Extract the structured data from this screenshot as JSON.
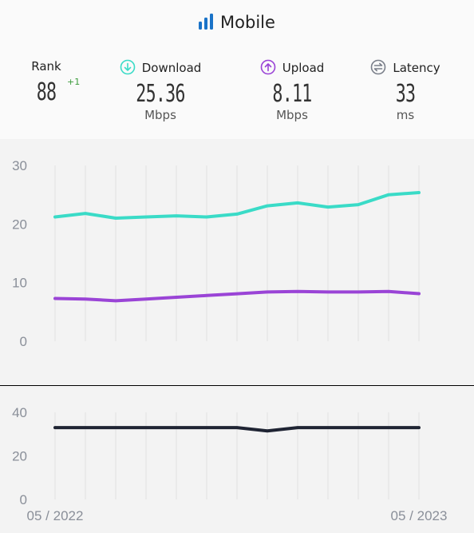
{
  "header": {
    "title": "Mobile",
    "rank": {
      "label": "Rank",
      "value": "88",
      "change": "+1"
    },
    "download": {
      "label": "Download",
      "value": "25.36",
      "unit": "Mbps",
      "color": "#3adbc7"
    },
    "upload": {
      "label": "Upload",
      "value": "8.11",
      "unit": "Mbps",
      "color": "#9a44d6"
    },
    "latency": {
      "label": "Latency",
      "value": "33",
      "unit": "ms",
      "color": "#1f2433"
    }
  },
  "chart_data": [
    {
      "type": "line",
      "title": "",
      "xlabel": "",
      "ylabel": "",
      "x": [
        "05 / 2022",
        "",
        "",
        "",
        "",
        "",
        "",
        "",
        "",
        "",
        "",
        "",
        "05 / 2023"
      ],
      "ylim": [
        0,
        30
      ],
      "yticks": [
        0,
        10,
        20,
        30
      ],
      "grid": "vertical",
      "series": [
        {
          "name": "Download",
          "color": "#3adbc7",
          "values": [
            21.2,
            21.8,
            21.0,
            21.2,
            21.4,
            21.2,
            21.7,
            23.1,
            23.6,
            22.9,
            23.3,
            25.0,
            25.36
          ]
        },
        {
          "name": "Upload",
          "color": "#9a44d6",
          "values": [
            7.3,
            7.2,
            6.9,
            7.2,
            7.5,
            7.8,
            8.1,
            8.4,
            8.5,
            8.4,
            8.4,
            8.5,
            8.11
          ]
        }
      ]
    },
    {
      "type": "line",
      "title": "",
      "xlabel": "",
      "ylabel": "",
      "x": [
        "05 / 2022",
        "",
        "",
        "",
        "",
        "",
        "",
        "",
        "",
        "",
        "",
        "",
        "05 / 2023"
      ],
      "ylim": [
        0,
        40
      ],
      "yticks": [
        0,
        20,
        40
      ],
      "grid": "vertical",
      "series": [
        {
          "name": "Latency",
          "color": "#1f2433",
          "values": [
            33,
            33,
            33,
            33,
            33,
            33,
            33,
            31.5,
            33,
            33,
            33,
            33,
            33
          ]
        }
      ]
    }
  ]
}
